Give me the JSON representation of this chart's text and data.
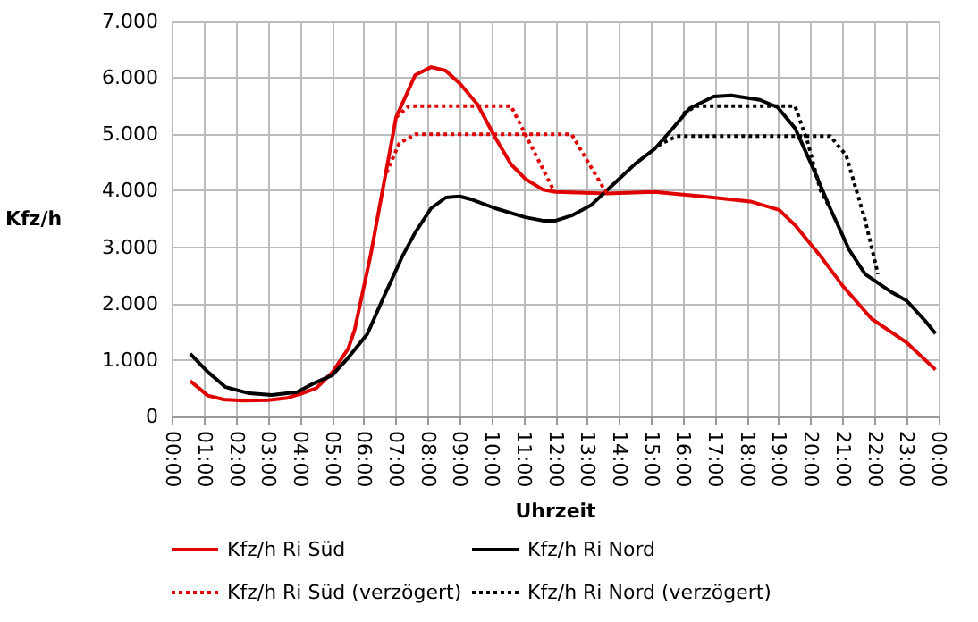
{
  "chart_data": {
    "type": "line",
    "xlabel": "Uhrzeit",
    "ylabel": "Kfz/h",
    "xlim": [
      0,
      24
    ],
    "xticks": [
      {
        "value": 0,
        "label": "00:00"
      },
      {
        "value": 1,
        "label": "01:00"
      },
      {
        "value": 2,
        "label": "02:00"
      },
      {
        "value": 3,
        "label": "03:00"
      },
      {
        "value": 4,
        "label": "04:00"
      },
      {
        "value": 5,
        "label": "05:00"
      },
      {
        "value": 6,
        "label": "06:00"
      },
      {
        "value": 7,
        "label": "07:00"
      },
      {
        "value": 8,
        "label": "08:00"
      },
      {
        "value": 9,
        "label": "09:00"
      },
      {
        "value": 10,
        "label": "10:00"
      },
      {
        "value": 11,
        "label": "11:00"
      },
      {
        "value": 12,
        "label": "12:00"
      },
      {
        "value": 13,
        "label": "13:00"
      },
      {
        "value": 14,
        "label": "14:00"
      },
      {
        "value": 15,
        "label": "15:00"
      },
      {
        "value": 16,
        "label": "16:00"
      },
      {
        "value": 17,
        "label": "17:00"
      },
      {
        "value": 18,
        "label": "18:00"
      },
      {
        "value": 19,
        "label": "19:00"
      },
      {
        "value": 20,
        "label": "20:00"
      },
      {
        "value": 21,
        "label": "21:00"
      },
      {
        "value": 22,
        "label": "22:00"
      },
      {
        "value": 23,
        "label": "23:00"
      },
      {
        "value": 24,
        "label": "00:00"
      }
    ],
    "ylim": [
      0,
      7000
    ],
    "yticks": [
      0,
      {
        "value": 1000,
        "label": "1.000"
      },
      {
        "value": 2000,
        "label": "2.000"
      },
      {
        "value": 3000,
        "label": "3.000"
      },
      {
        "value": 4000,
        "label": "4.000"
      },
      {
        "value": 5000,
        "label": "5.000"
      },
      {
        "value": 6000,
        "label": "6.000"
      },
      {
        "value": 7000,
        "label": "7.000"
      }
    ],
    "grid": true,
    "legend": "bottom",
    "marker": "none",
    "series": [
      {
        "name": "Kfz/h Ri Süd (verzögert)",
        "color": "#e00000",
        "line_style": "dotted",
        "x": [
          6.7,
          7.1,
          7.6,
          12.5,
          13.6
        ],
        "values": [
          4320,
          4840,
          5000,
          5000,
          3950
        ]
      },
      {
        "color": "#e00000",
        "line_style": "dotted",
        "x": [
          7.0,
          7.4,
          10.6,
          11.05,
          11.9
        ],
        "values": [
          5300,
          5500,
          5500,
          5000,
          4050
        ]
      },
      {
        "name": "Kfz/h Ri Nord (verzögert)",
        "color": "#000000",
        "line_style": "dotted",
        "x": [
          15.2,
          15.8,
          20.6,
          21.1,
          21.7,
          22.1
        ],
        "values": [
          4800,
          4970,
          4970,
          4630,
          3470,
          2520
        ]
      },
      {
        "color": "#000000",
        "line_style": "dotted",
        "x": [
          16.0,
          16.4,
          19.5,
          19.9,
          20.3,
          20.6
        ],
        "values": [
          5370,
          5500,
          5500,
          4850,
          4000,
          3690
        ]
      },
      {
        "name": "Kfz/h Ri Süd",
        "color": "#e00000",
        "line_style": "solid",
        "x": [
          0.55,
          1.1,
          1.6,
          2.2,
          3.0,
          3.6,
          4.0,
          4.5,
          5.0,
          5.5,
          5.7,
          6.2,
          7.0,
          7.6,
          8.1,
          8.55,
          9.0,
          9.55,
          10.1,
          10.6,
          11.05,
          11.6,
          12.0,
          13.6,
          15.1,
          16.6,
          18.1,
          19.0,
          19.5,
          20.3,
          21.0,
          21.9,
          23.0,
          23.9
        ],
        "values": [
          630,
          370,
          300,
          280,
          290,
          330,
          400,
          500,
          780,
          1200,
          1530,
          2850,
          5300,
          6050,
          6190,
          6130,
          5900,
          5530,
          4950,
          4470,
          4210,
          4020,
          3980,
          3950,
          3980,
          3900,
          3810,
          3660,
          3390,
          2840,
          2310,
          1730,
          1310,
          830
        ]
      },
      {
        "name": "Kfz/h Ri Nord",
        "color": "#000000",
        "line_style": "solid",
        "x": [
          0.55,
          1.1,
          1.66,
          2.4,
          3.1,
          3.9,
          4.4,
          5.0,
          5.5,
          6.1,
          6.6,
          7.2,
          7.6,
          8.1,
          8.56,
          9.0,
          9.4,
          10.1,
          11.05,
          11.6,
          12.0,
          12.5,
          13.1,
          13.8,
          14.5,
          15.1,
          15.6,
          16.2,
          16.95,
          17.5,
          18.4,
          18.95,
          19.5,
          20.05,
          20.6,
          21.2,
          21.7,
          22.5,
          23.0,
          23.6,
          23.9
        ],
        "values": [
          1110,
          790,
          520,
          410,
          380,
          430,
          580,
          730,
          1040,
          1460,
          2100,
          2840,
          3260,
          3690,
          3880,
          3900,
          3840,
          3690,
          3530,
          3470,
          3470,
          3560,
          3740,
          4110,
          4480,
          4740,
          5060,
          5460,
          5670,
          5690,
          5610,
          5480,
          5110,
          4420,
          3690,
          2950,
          2520,
          2210,
          2050,
          1680,
          1470
        ]
      }
    ]
  }
}
